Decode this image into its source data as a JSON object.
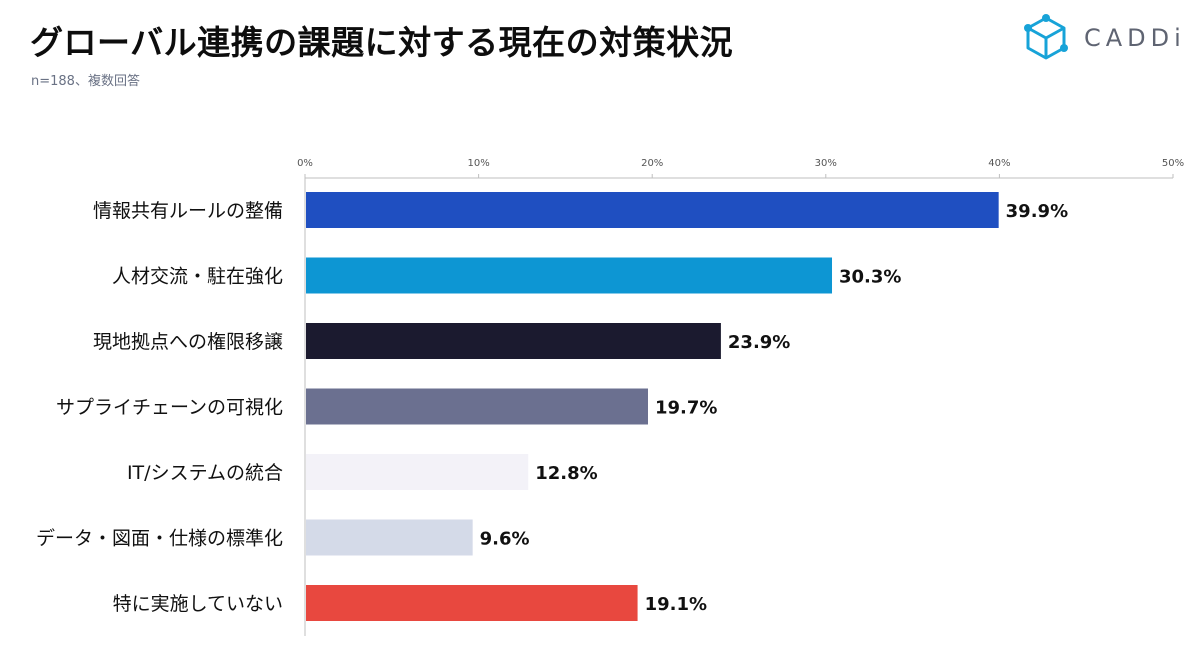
{
  "header": {
    "title": "グローバル連携の課題に対する現在の対策状況",
    "subtitle": "n=188、複数回答"
  },
  "brand": {
    "logo_text": "CADDi",
    "logo_color": "#17a3d8",
    "logo_icon": "cube-icon"
  },
  "chart_data": {
    "type": "bar",
    "orientation": "horizontal",
    "title": "グローバル連携の課題に対する現在の対策状況",
    "subtitle": "n=188、複数回答",
    "categories": [
      "情報共有ルールの整備",
      "人材交流・駐在強化",
      "現地拠点への権限移譲",
      "サプライチェーンの可視化",
      "IT/システムの統合",
      "データ・図面・仕様の標準化",
      "特に実施していない"
    ],
    "values": [
      39.9,
      30.3,
      23.9,
      19.7,
      12.8,
      9.6,
      19.1
    ],
    "value_labels": [
      "39.9%",
      "30.3%",
      "23.9%",
      "19.7%",
      "12.8%",
      "9.6%",
      "19.1%"
    ],
    "colors": [
      "#1f4fc1",
      "#0d96d3",
      "#1b1a2f",
      "#6b7090",
      "#f3f2f8",
      "#d4dae8",
      "#e8483f"
    ],
    "x_ticks": [
      "0%",
      "10%",
      "20%",
      "30%",
      "40%",
      "50%"
    ],
    "xlim": [
      0,
      50
    ],
    "xlabel": "",
    "ylabel": "",
    "grid": false,
    "legend": "none"
  }
}
